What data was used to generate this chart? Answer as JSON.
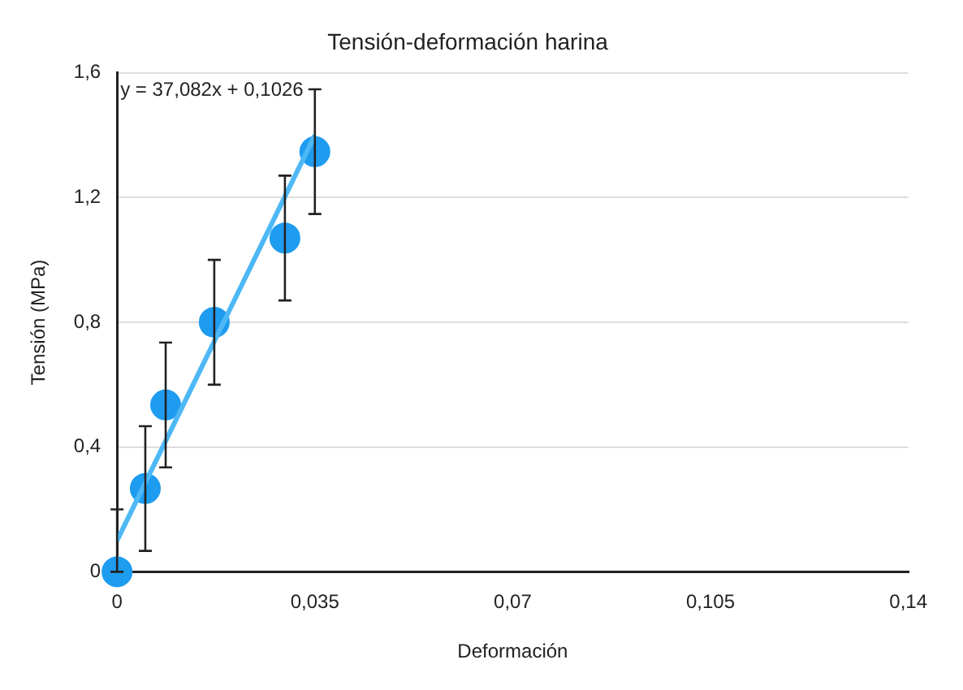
{
  "chart_data": {
    "type": "scatter",
    "title": "Tensión-deformación harina",
    "xlabel": "Deformación",
    "ylabel": "Tensión (MPa)",
    "annotations": [
      "y = 37,082x + 0,1026"
    ],
    "x": [
      0,
      0.005,
      0.0086,
      0.0172,
      0.0297,
      0.035
    ],
    "series": [
      {
        "color": "#1e9cf0",
        "values": [
          0,
          0.267,
          0.535,
          0.8,
          1.07,
          1.347
        ],
        "errors": [
          [
            0,
            0.2
          ],
          0.2,
          0.2,
          0.2,
          0.2,
          0.2
        ]
      },
      {
        "type": "line",
        "color": "#4db8f5",
        "x": [
          0,
          0.035
        ],
        "values": [
          0.1,
          1.4
        ],
        "marker": "none"
      }
    ],
    "xlim": [
      0,
      0.14
    ],
    "xticks": [
      0,
      {
        "value": 0.035,
        "label": "0,035"
      },
      {
        "value": 0.07,
        "label": "0,07"
      },
      {
        "value": 0.105,
        "label": "0,105"
      },
      {
        "value": 0.14,
        "label": "0,14"
      }
    ],
    "ylim": [
      0,
      1.6
    ],
    "yticks": [
      0,
      {
        "value": 0.4,
        "label": "0,4"
      },
      {
        "value": 0.8,
        "label": "0,8"
      },
      {
        "value": 1.2,
        "label": "1,2"
      },
      {
        "value": 1.6,
        "label": "1,6"
      }
    ],
    "grid": "y",
    "legend": false,
    "marker": "circle"
  }
}
